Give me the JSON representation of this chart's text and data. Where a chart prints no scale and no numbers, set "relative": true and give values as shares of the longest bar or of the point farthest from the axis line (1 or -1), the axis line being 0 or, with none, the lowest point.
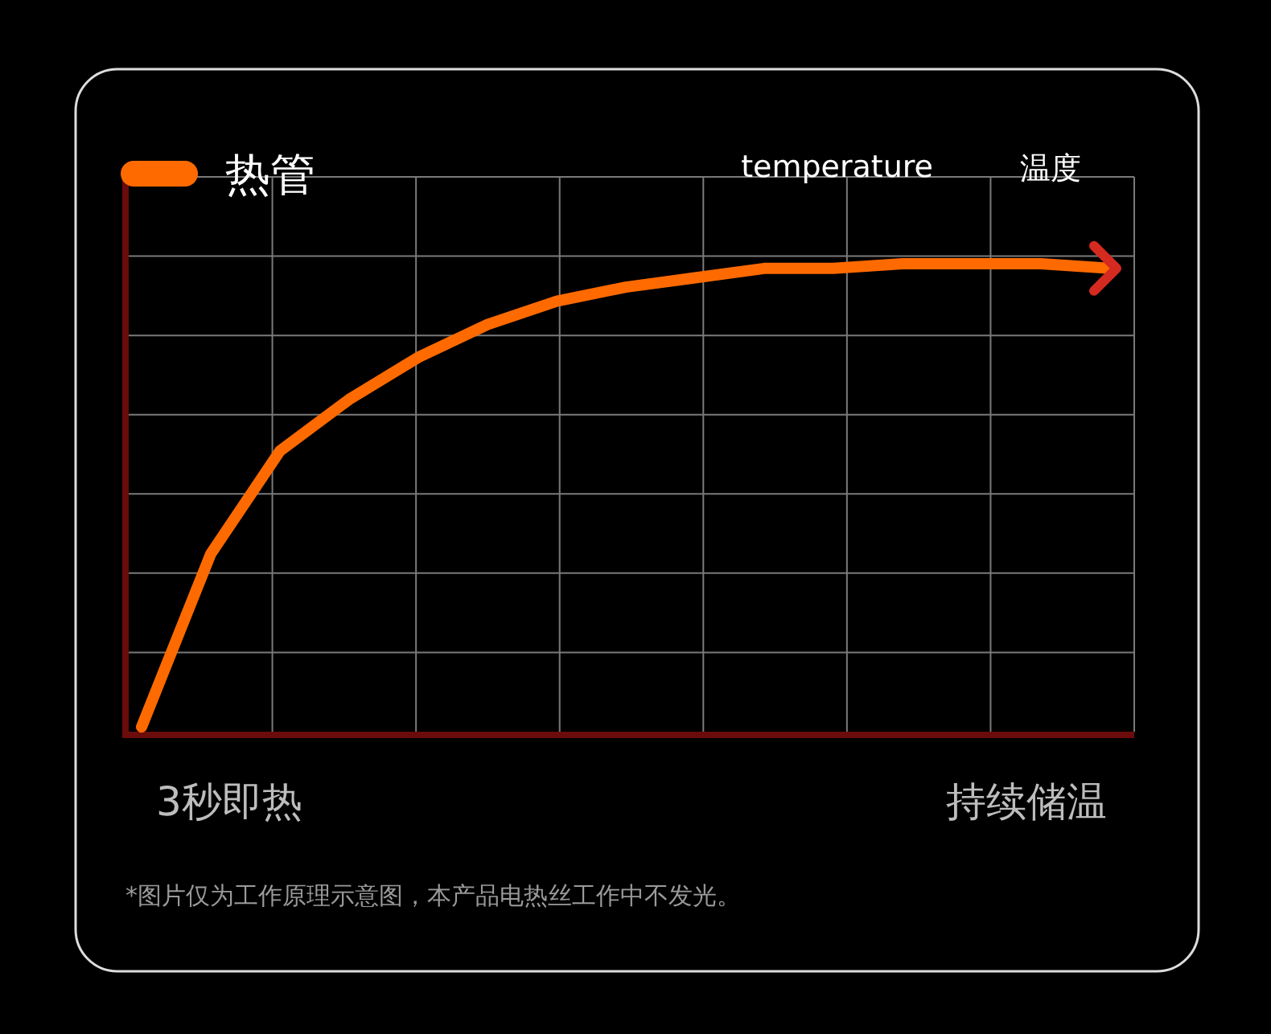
{
  "chart_data": {
    "type": "line",
    "relative": true,
    "ylabel": "温度",
    "legend": "top left",
    "grid": true,
    "categories": [
      null,
      null,
      null,
      null,
      null,
      null,
      null,
      null,
      null,
      null,
      null,
      null,
      null,
      null,
      null
    ],
    "series": [
      {
        "name": "热管",
        "color": "#ff6a00",
        "values": [
          0.01,
          0.38,
          0.6,
          0.71,
          0.8,
          0.87,
          0.92,
          0.95,
          0.97,
          0.99,
          0.99,
          1,
          1,
          1,
          0.99
        ]
      }
    ],
    "annotations": [
      "3秒即热",
      "持续储温",
      "temperature",
      "*图片仅为工作原理示意图，本产品电热丝工作中不发光。"
    ]
  }
}
